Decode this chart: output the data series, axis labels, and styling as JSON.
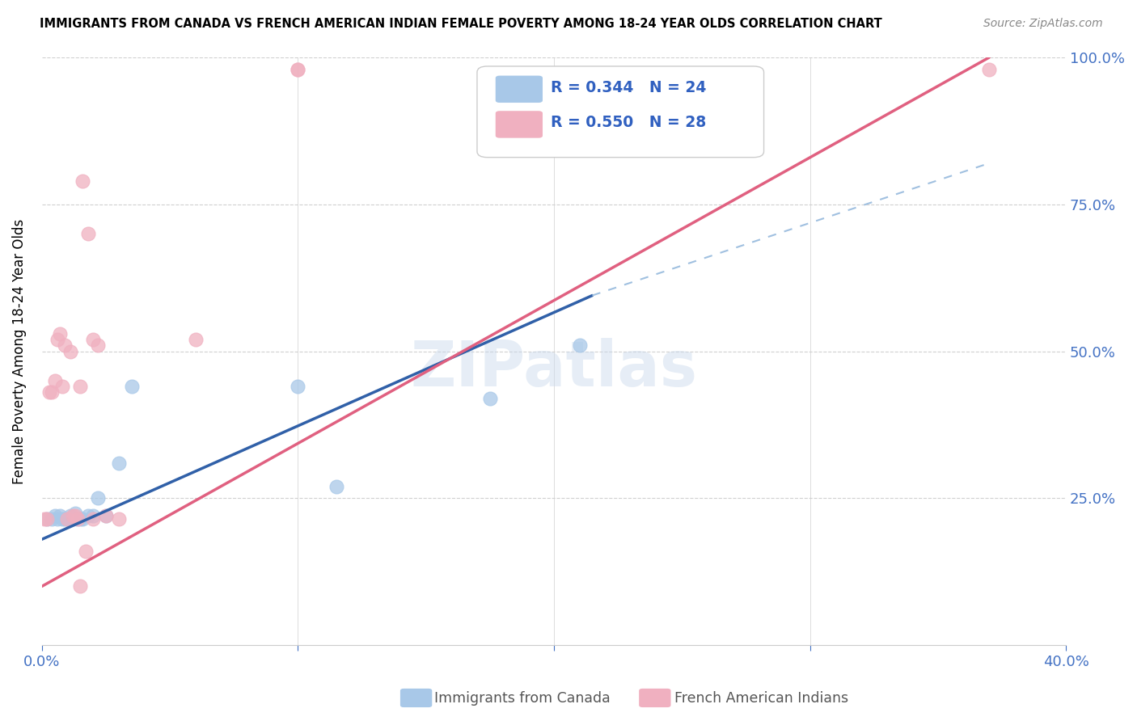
{
  "title": "IMMIGRANTS FROM CANADA VS FRENCH AMERICAN INDIAN FEMALE POVERTY AMONG 18-24 YEAR OLDS CORRELATION CHART",
  "source": "Source: ZipAtlas.com",
  "ylabel": "Female Poverty Among 18-24 Year Olds",
  "xlim": [
    0.0,
    0.4
  ],
  "ylim": [
    0.0,
    1.0
  ],
  "blue_R": 0.344,
  "blue_N": 24,
  "pink_R": 0.55,
  "pink_N": 28,
  "blue_color": "#a8c8e8",
  "blue_line_color": "#3060a8",
  "blue_dash_color": "#a0c0e0",
  "pink_color": "#f0b0c0",
  "pink_line_color": "#e06080",
  "blue_label": "Immigrants from Canada",
  "pink_label": "French American Indians",
  "legend_text_color": "#3060c0",
  "watermark": "ZIPatlas",
  "blue_scatter_x": [
    0.002,
    0.004,
    0.005,
    0.006,
    0.007,
    0.008,
    0.009,
    0.01,
    0.011,
    0.012,
    0.013,
    0.014,
    0.015,
    0.016,
    0.018,
    0.02,
    0.022,
    0.025,
    0.03,
    0.035,
    0.1,
    0.115,
    0.175,
    0.21
  ],
  "blue_scatter_y": [
    0.215,
    0.215,
    0.22,
    0.215,
    0.22,
    0.215,
    0.215,
    0.215,
    0.22,
    0.215,
    0.225,
    0.215,
    0.215,
    0.215,
    0.22,
    0.22,
    0.25,
    0.22,
    0.31,
    0.44,
    0.44,
    0.27,
    0.42,
    0.51
  ],
  "pink_scatter_x": [
    0.001,
    0.002,
    0.003,
    0.004,
    0.005,
    0.006,
    0.007,
    0.008,
    0.009,
    0.01,
    0.011,
    0.012,
    0.013,
    0.014,
    0.015,
    0.016,
    0.018,
    0.02,
    0.025,
    0.03,
    0.015,
    0.017,
    0.02,
    0.022,
    0.06,
    0.1,
    0.1,
    0.37
  ],
  "pink_scatter_y": [
    0.215,
    0.215,
    0.43,
    0.43,
    0.45,
    0.52,
    0.53,
    0.44,
    0.51,
    0.215,
    0.5,
    0.22,
    0.22,
    0.215,
    0.44,
    0.79,
    0.7,
    0.52,
    0.22,
    0.215,
    0.1,
    0.16,
    0.215,
    0.51,
    0.52,
    0.98,
    0.98,
    0.98
  ],
  "grid_color": "#d0d0d0",
  "background_color": "#ffffff",
  "axis_color": "#4472c4"
}
